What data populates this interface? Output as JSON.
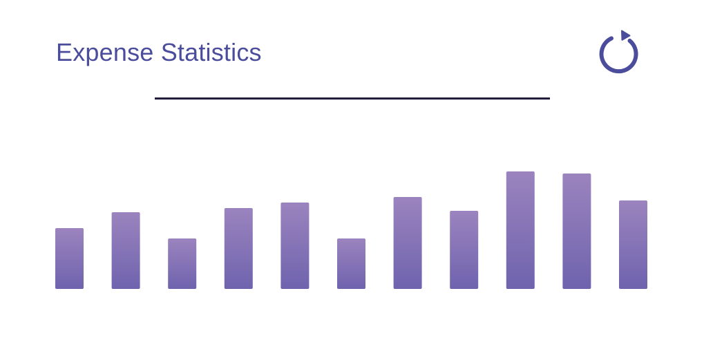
{
  "header": {
    "title": "Expense Statistics",
    "refresh_icon": "refresh-icon"
  },
  "colors": {
    "title": "#4b4c9b",
    "icon": "#4b4c9b",
    "divider": "#231d3d",
    "bar_top": "#9b84be",
    "bar_bottom": "#6f63ae"
  },
  "chart_data": {
    "type": "bar",
    "title": "Expense Statistics",
    "series": [
      {
        "values": [
          88,
          111,
          73,
          117,
          125,
          73,
          133,
          113,
          170,
          167,
          128
        ]
      }
    ],
    "ylim": [
      0,
      180
    ],
    "grid": false,
    "axes_visible": false
  }
}
